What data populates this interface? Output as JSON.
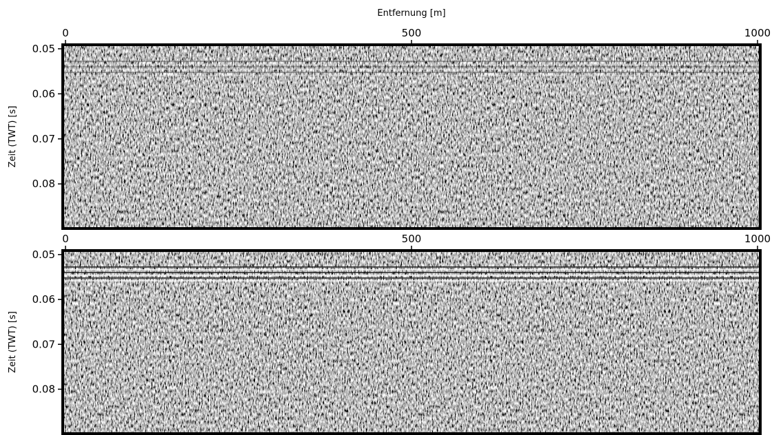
{
  "chart_data": [
    {
      "type": "image",
      "xlabel": "Entfernung [m]",
      "ylabel": "Zeit (TWT) [s]",
      "xlim": [
        -4,
        1004
      ],
      "xticks": [
        0,
        500,
        1000
      ],
      "ylim": [
        0.0899,
        0.0491
      ],
      "yticks": [
        0.05,
        0.06,
        0.07,
        0.08
      ]
    },
    {
      "type": "image",
      "ylabel": "Zeit (TWT) [s]",
      "xlim": [
        -4,
        1004
      ],
      "xticks": [
        0,
        500,
        1000
      ],
      "ylim": [
        0.0899,
        0.0491
      ],
      "yticks": [
        0.05,
        0.06,
        0.07,
        0.08
      ]
    }
  ]
}
